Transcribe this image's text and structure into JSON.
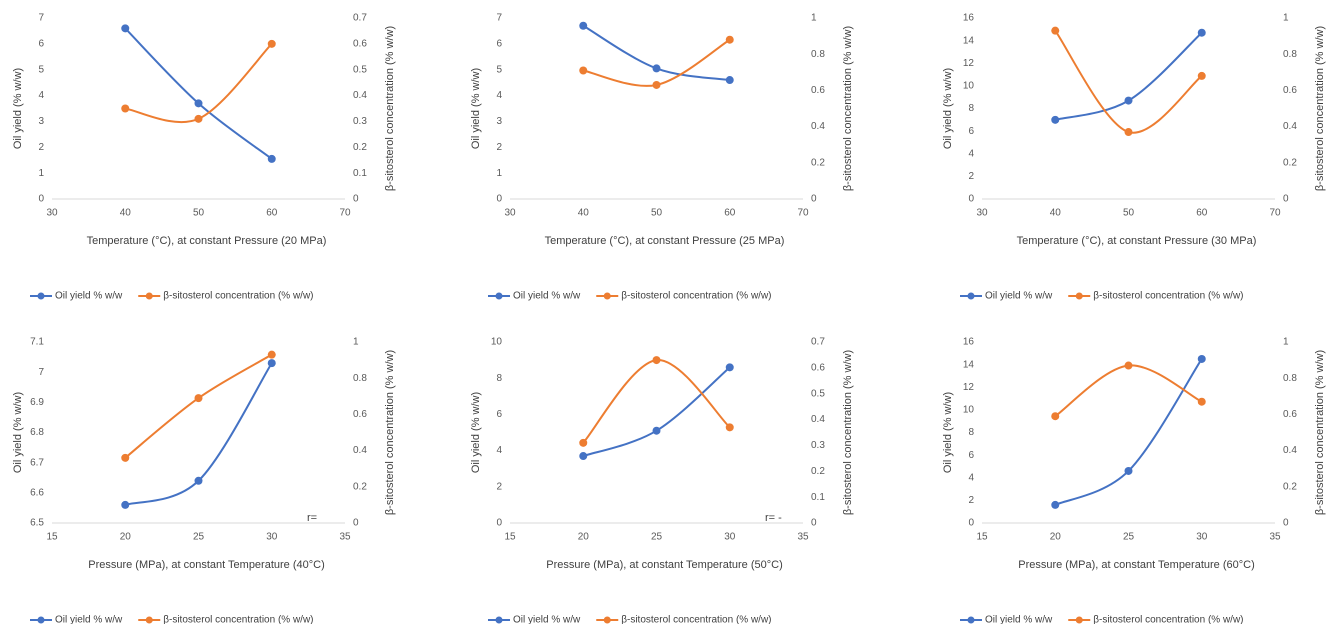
{
  "chart_data": [
    {
      "type": "line",
      "x": [
        40,
        50,
        60
      ],
      "xlim": [
        30,
        70
      ],
      "xticks": [
        30,
        40,
        50,
        60,
        70
      ],
      "ylim": [
        0,
        7
      ],
      "yticks": [
        0,
        1,
        2,
        3,
        4,
        5,
        6,
        7
      ],
      "y2lim": [
        0,
        0.7
      ],
      "y2ticks": [
        0,
        0.1,
        0.2,
        0.3,
        0.4,
        0.5,
        0.6,
        0.7
      ],
      "xlabel": "Temperature (°C), at constant Pressure (20 MPa)",
      "ylabel": "Oil yield (% w/w)",
      "y2label": "β-sitosterol concentration (% w/w)",
      "series": [
        {
          "name": "Oil yield % w/w",
          "color": "#4472c4",
          "values": [
            6.6,
            3.7,
            1.55
          ]
        },
        {
          "name": "β-sitosterol concentration (% w/w)",
          "color": "#ed7d31",
          "axis": "y2",
          "values": [
            0.35,
            0.31,
            0.6
          ]
        }
      ]
    },
    {
      "type": "line",
      "x": [
        40,
        50,
        60
      ],
      "xlim": [
        30,
        70
      ],
      "xticks": [
        30,
        40,
        50,
        60,
        70
      ],
      "ylim": [
        0,
        7
      ],
      "yticks": [
        0,
        1,
        2,
        3,
        4,
        5,
        6,
        7
      ],
      "y2lim": [
        0,
        1
      ],
      "y2ticks": [
        0,
        0.2,
        0.4,
        0.6,
        0.8,
        1
      ],
      "xlabel": "Temperature (°C), at constant Pressure (25 MPa)",
      "ylabel": "Oil yield (% w/w)",
      "y2label": "β-sitosterol concentration (% w/w)",
      "series": [
        {
          "name": "Oil yield % w/w",
          "color": "#4472c4",
          "values": [
            6.7,
            5.05,
            4.6
          ]
        },
        {
          "name": "β-sitosterol concentration (% w/w)",
          "color": "#ed7d31",
          "axis": "y2",
          "values": [
            0.71,
            0.63,
            0.88
          ]
        }
      ]
    },
    {
      "type": "line",
      "x": [
        40,
        50,
        60
      ],
      "xlim": [
        30,
        70
      ],
      "xticks": [
        30,
        40,
        50,
        60,
        70
      ],
      "ylim": [
        0,
        16
      ],
      "yticks": [
        0,
        2,
        4,
        6,
        8,
        10,
        12,
        14,
        16
      ],
      "y2lim": [
        0,
        1
      ],
      "y2ticks": [
        0,
        0.2,
        0.4,
        0.6,
        0.8,
        1
      ],
      "xlabel": "Temperature (°C), at constant Pressure (30 MPa)",
      "ylabel": "Oil yield (% w/w)",
      "y2label": "β-sitosterol concentration (% w/w)",
      "series": [
        {
          "name": "Oil yield % w/w",
          "color": "#4472c4",
          "values": [
            7.0,
            8.7,
            14.7
          ]
        },
        {
          "name": "β-sitosterol concentration (% w/w)",
          "color": "#ed7d31",
          "axis": "y2",
          "values": [
            0.93,
            0.37,
            0.68
          ]
        }
      ]
    },
    {
      "type": "line",
      "x": [
        20,
        25,
        30
      ],
      "xlim": [
        15,
        35
      ],
      "xticks": [
        15,
        20,
        25,
        30,
        35
      ],
      "ylim": [
        6.5,
        7.1
      ],
      "yticks": [
        6.5,
        6.6,
        6.7,
        6.8,
        6.9,
        7,
        7.1
      ],
      "y2lim": [
        0,
        1
      ],
      "y2ticks": [
        0,
        0.2,
        0.4,
        0.6,
        0.8,
        1
      ],
      "xlabel": "Pressure (MPa), at constant Temperature (40°C)",
      "ylabel": "Oil yield (% w/w)",
      "y2label": "β-sitosterol concentration (% w/w)",
      "annotation": "r=",
      "series": [
        {
          "name": "Oil yield % w/w",
          "color": "#4472c4",
          "values": [
            6.56,
            6.64,
            7.03
          ]
        },
        {
          "name": "β-sitosterol concentration (% w/w)",
          "color": "#ed7d31",
          "axis": "y2",
          "values": [
            0.36,
            0.69,
            0.93
          ]
        }
      ]
    },
    {
      "type": "line",
      "x": [
        20,
        25,
        30
      ],
      "xlim": [
        15,
        35
      ],
      "xticks": [
        15,
        20,
        25,
        30,
        35
      ],
      "ylim": [
        0,
        10
      ],
      "yticks": [
        0,
        2,
        4,
        6,
        8,
        10
      ],
      "y2lim": [
        0,
        0.7
      ],
      "y2ticks": [
        0,
        0.1,
        0.2,
        0.3,
        0.4,
        0.5,
        0.6,
        0.7
      ],
      "xlabel": "Pressure (MPa), at constant Temperature (50°C)",
      "ylabel": "Oil yield (% w/w)",
      "y2label": "β-sitosterol concentration (% w/w)",
      "annotation": "r= -",
      "series": [
        {
          "name": "Oil yield % w/w",
          "color": "#4472c4",
          "values": [
            3.7,
            5.1,
            8.6
          ]
        },
        {
          "name": "β-sitosterol concentration (% w/w)",
          "color": "#ed7d31",
          "axis": "y2",
          "values": [
            0.31,
            0.63,
            0.37
          ]
        }
      ]
    },
    {
      "type": "line",
      "x": [
        20,
        25,
        30
      ],
      "xlim": [
        15,
        35
      ],
      "xticks": [
        15,
        20,
        25,
        30,
        35
      ],
      "ylim": [
        0,
        16
      ],
      "yticks": [
        0,
        2,
        4,
        6,
        8,
        10,
        12,
        14,
        16
      ],
      "y2lim": [
        0,
        1
      ],
      "y2ticks": [
        0,
        0.2,
        0.4,
        0.6,
        0.8,
        1
      ],
      "xlabel": "Pressure (MPa), at constant Temperature (60°C)",
      "ylabel": "Oil yield (% w/w)",
      "y2label": "β-sitosterol concentration (% w/w)",
      "series": [
        {
          "name": "Oil yield % w/w",
          "color": "#4472c4",
          "values": [
            1.6,
            4.6,
            14.5
          ]
        },
        {
          "name": "β-sitosterol concentration (% w/w)",
          "color": "#ed7d31",
          "axis": "y2",
          "values": [
            0.59,
            0.87,
            0.67
          ]
        }
      ]
    }
  ]
}
